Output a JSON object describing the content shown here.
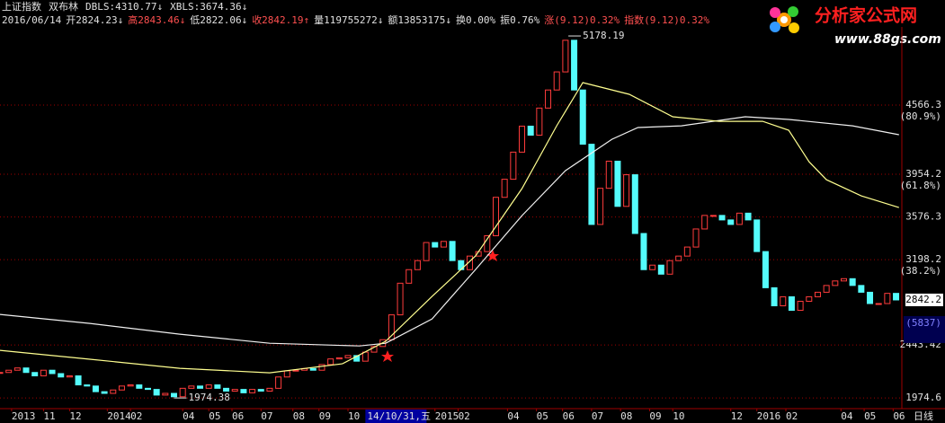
{
  "header": {
    "items": [
      "上证指数",
      "双布林",
      "DBLS:4310.77↓",
      "XBLS:3674.36↓"
    ],
    "quote": [
      {
        "text": "2016/06/14",
        "color": "#e0e0e0"
      },
      {
        "text": "开2824.23↓",
        "color": "#e0e0e0"
      },
      {
        "text": "高2843.46↓",
        "color": "#ff5050"
      },
      {
        "text": "低2822.06↓",
        "color": "#e0e0e0"
      },
      {
        "text": "收2842.19↑",
        "color": "#ff5050"
      },
      {
        "text": "量119755272↓",
        "color": "#e0e0e0"
      },
      {
        "text": "额13853175↓",
        "color": "#e0e0e0"
      },
      {
        "text": "换0.00%",
        "color": "#e0e0e0"
      },
      {
        "text": "振0.76%",
        "color": "#e0e0e0"
      },
      {
        "text": "涨(9.12)0.32%",
        "color": "#ff5050"
      },
      {
        "text": "指数(9.12)0.32%",
        "color": "#ff5050"
      }
    ]
  },
  "logo": {
    "title": "分析家公式网",
    "url": "www.88gs.com"
  },
  "chart_data": {
    "type": "candlestick",
    "x": [
      0,
      3,
      6,
      9,
      12,
      15,
      18,
      21,
      24,
      27,
      30,
      33,
      36,
      39,
      42,
      45,
      48,
      51,
      54,
      57,
      60,
      63,
      66,
      69,
      72,
      75,
      78,
      81,
      84,
      87,
      90,
      93,
      96,
      99,
      102,
      105,
      108,
      111,
      114,
      117,
      120,
      123,
      126,
      129,
      132,
      135,
      138,
      141,
      144,
      147,
      150,
      153,
      156,
      159,
      162,
      165,
      168,
      171,
      174,
      177,
      180,
      183,
      186,
      189,
      192,
      195,
      198,
      201,
      204,
      207,
      210,
      213,
      216,
      219,
      222,
      225,
      228,
      231,
      234,
      237,
      240,
      243,
      246,
      249,
      252,
      255,
      258,
      261,
      264,
      267,
      270,
      273,
      276,
      279,
      282,
      285,
      288,
      291,
      294,
      297,
      300,
      303,
      306,
      309
    ],
    "close": [
      2200,
      2220,
      2240,
      2200,
      2170,
      2220,
      2190,
      2160,
      2170,
      2090,
      2080,
      2030,
      2015,
      2045,
      2080,
      2090,
      2060,
      2050,
      2000,
      2015,
      1985,
      2060,
      2080,
      2060,
      2090,
      2060,
      2035,
      2050,
      2020,
      2050,
      2035,
      2060,
      2160,
      2215,
      2220,
      2235,
      2220,
      2270,
      2320,
      2330,
      2350,
      2300,
      2380,
      2430,
      2490,
      2710,
      2990,
      3110,
      3190,
      3350,
      3310,
      3360,
      3190,
      3110,
      3230,
      3270,
      3410,
      3750,
      3910,
      4150,
      4380,
      4300,
      4540,
      4700,
      4860,
      5140,
      4700,
      4220,
      3510,
      3830,
      4070,
      3670,
      3950,
      3430,
      3110,
      3150,
      3070,
      3190,
      3230,
      3310,
      3470,
      3590,
      3590,
      3550,
      3510,
      3610,
      3550,
      3270,
      2950,
      2790,
      2870,
      2750,
      2830,
      2870,
      2910,
      2970,
      3010,
      3030,
      2970,
      2910,
      2810,
      2810,
      2900,
      2842
    ],
    "up_color": "#ff3c3c",
    "down_color": "#54fcfc",
    "series": [
      {
        "color": "#f0f0f0",
        "x": [
          0,
          31,
          62,
          93,
          124,
          133,
          149,
          164,
          180,
          195,
          211,
          220,
          235,
          257,
          272,
          294,
          310
        ],
        "values": [
          2714,
          2634,
          2539,
          2459,
          2435,
          2459,
          2674,
          3111,
          3588,
          3986,
          4264,
          4368,
          4383,
          4463,
          4439,
          4383,
          4304
        ]
      },
      {
        "color": "#ffff90",
        "x": [
          0,
          31,
          62,
          93,
          118,
          133,
          149,
          164,
          180,
          192,
          201,
          217,
          232,
          248,
          263,
          272,
          279,
          285,
          297,
          310
        ],
        "values": [
          2396,
          2317,
          2237,
          2197,
          2277,
          2476,
          2873,
          3231,
          3827,
          4384,
          4765,
          4662,
          4463,
          4423,
          4423,
          4344,
          4065,
          3906,
          3763,
          3660
        ]
      }
    ],
    "xlim": [
      0,
      311
    ],
    "ylim": [
      1880,
      5258
    ],
    "yticks": [
      4566.3,
      3954.2,
      3576.3,
      3198.2,
      2443.42,
      1974.6
    ],
    "ratio_labels": [
      "(80.9%)",
      "(61.8%)",
      "(38.2%)"
    ],
    "grid": true,
    "grid_color": "#a00000",
    "xticks": [
      {
        "value": 4,
        "label": "2013"
      },
      {
        "value": 15,
        "label": "11"
      },
      {
        "value": 24,
        "label": "12"
      },
      {
        "value": 37,
        "label": "2014"
      },
      {
        "value": 45,
        "label": "02"
      },
      {
        "value": 63,
        "label": "04"
      },
      {
        "value": 72,
        "label": "05"
      },
      {
        "value": 80,
        "label": "06"
      },
      {
        "value": 90,
        "label": "07"
      },
      {
        "value": 101,
        "label": "08"
      },
      {
        "value": 110,
        "label": "09"
      },
      {
        "value": 120,
        "label": "10"
      },
      {
        "value": 150,
        "label": "2015"
      },
      {
        "value": 158,
        "label": "02"
      },
      {
        "value": 175,
        "label": "04"
      },
      {
        "value": 185,
        "label": "05"
      },
      {
        "value": 194,
        "label": "06"
      },
      {
        "value": 204,
        "label": "07"
      },
      {
        "value": 214,
        "label": "08"
      },
      {
        "value": 224,
        "label": "09"
      },
      {
        "value": 232,
        "label": "10"
      },
      {
        "value": 252,
        "label": "12"
      },
      {
        "value": 261,
        "label": "2016"
      },
      {
        "value": 271,
        "label": "02"
      },
      {
        "value": 290,
        "label": "04"
      },
      {
        "value": 298,
        "label": "05"
      },
      {
        "value": 308,
        "label": "06"
      }
    ],
    "cursor": {
      "x": 126,
      "label": "14/10/31,五"
    },
    "period": "日线",
    "annotations": [
      {
        "x": 196,
        "value": 5178.19
      },
      {
        "x": 60,
        "value": 1974.38
      }
    ],
    "last": 2842.2,
    "volume_label": "(5837)"
  }
}
